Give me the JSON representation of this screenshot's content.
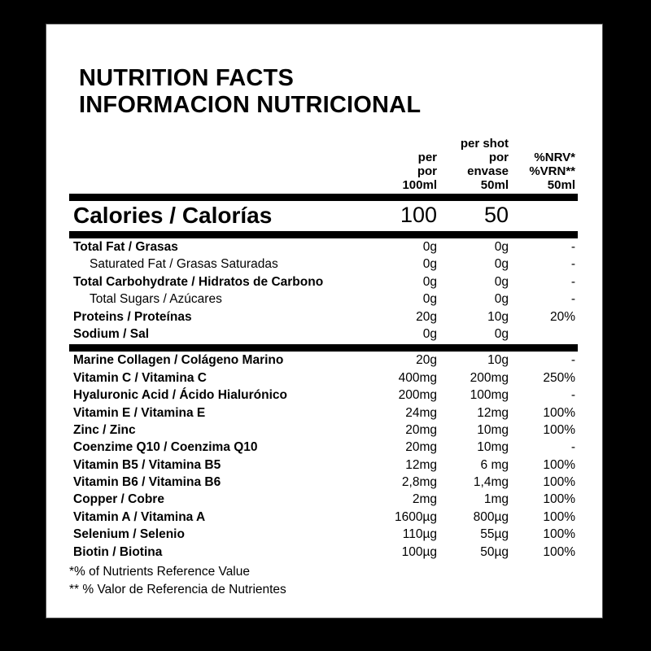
{
  "title": {
    "line1": "NUTRITION FACTS",
    "line2": "INFORMACION NUTRICIONAL"
  },
  "header": {
    "col1": [
      "per",
      "por",
      "100ml"
    ],
    "col2": [
      "per shot",
      "por",
      "envase",
      "50ml"
    ],
    "col3": [
      "%NRV*",
      "%VRN**",
      "50ml"
    ]
  },
  "calories": {
    "label": "Calories / Calorías",
    "per100": "100",
    "per50": "50",
    "nrv": ""
  },
  "section1": [
    {
      "label": "Total Fat / Grasas",
      "bold": true,
      "indent": false,
      "per100": "0g",
      "per50": "0g",
      "nrv": "-"
    },
    {
      "label": "Saturated Fat / Grasas Saturadas",
      "bold": false,
      "indent": true,
      "per100": "0g",
      "per50": "0g",
      "nrv": "-"
    },
    {
      "label": "Total Carbohydrate / Hidratos de Carbono",
      "bold": true,
      "indent": false,
      "per100": "0g",
      "per50": "0g",
      "nrv": "-"
    },
    {
      "label": "Total Sugars / Azúcares",
      "bold": false,
      "indent": true,
      "per100": "0g",
      "per50": "0g",
      "nrv": "-"
    },
    {
      "label": "Proteins / Proteínas",
      "bold": true,
      "indent": false,
      "per100": "20g",
      "per50": "10g",
      "nrv": "20%"
    },
    {
      "label": "Sodium / Sal",
      "bold": true,
      "indent": false,
      "per100": "0g",
      "per50": "0g",
      "nrv": ""
    }
  ],
  "section2": [
    {
      "label": "Marine Collagen / Colágeno Marino",
      "per100": "20g",
      "per50": "10g",
      "nrv": "-"
    },
    {
      "label": "Vitamin C / Vitamina C",
      "per100": "400mg",
      "per50": "200mg",
      "nrv": "250%"
    },
    {
      "label": "Hyaluronic Acid / Ácido Hialurónico",
      "per100": "200mg",
      "per50": "100mg",
      "nrv": "-"
    },
    {
      "label": "Vitamin E / Vitamina E",
      "per100": "24mg",
      "per50": "12mg",
      "nrv": "100%"
    },
    {
      "label": "Zinc / Zinc",
      "per100": "20mg",
      "per50": "10mg",
      "nrv": "100%"
    },
    {
      "label": "Coenzime Q10 / Coenzima Q10",
      "per100": "20mg",
      "per50": "10mg",
      "nrv": "-"
    },
    {
      "label": "Vitamin B5 / Vitamina B5",
      "per100": "12mg",
      "per50": "6 mg",
      "nrv": "100%"
    },
    {
      "label": "Vitamin B6 / Vitamina B6",
      "per100": "2,8mg",
      "per50": "1,4mg",
      "nrv": "100%"
    },
    {
      "label": "Copper / Cobre",
      "per100": "2mg",
      "per50": "1mg",
      "nrv": "100%"
    },
    {
      "label": "Vitamin A / Vitamina A",
      "per100": "1600µg",
      "per50": "800µg",
      "nrv": "100%"
    },
    {
      "label": "Selenium / Selenio",
      "per100": "110µg",
      "per50": "55µg",
      "nrv": "100%"
    },
    {
      "label": "Biotin / Biotina",
      "per100": "100µg",
      "per50": "50µg",
      "nrv": "100%"
    }
  ],
  "footnotes": [
    "*% of Nutrients Reference Value",
    "** % Valor de Referencia de Nutrientes"
  ],
  "colors": {
    "text": "#000000",
    "card": "#ffffff",
    "frame": "#000000",
    "rule": "#000000"
  }
}
